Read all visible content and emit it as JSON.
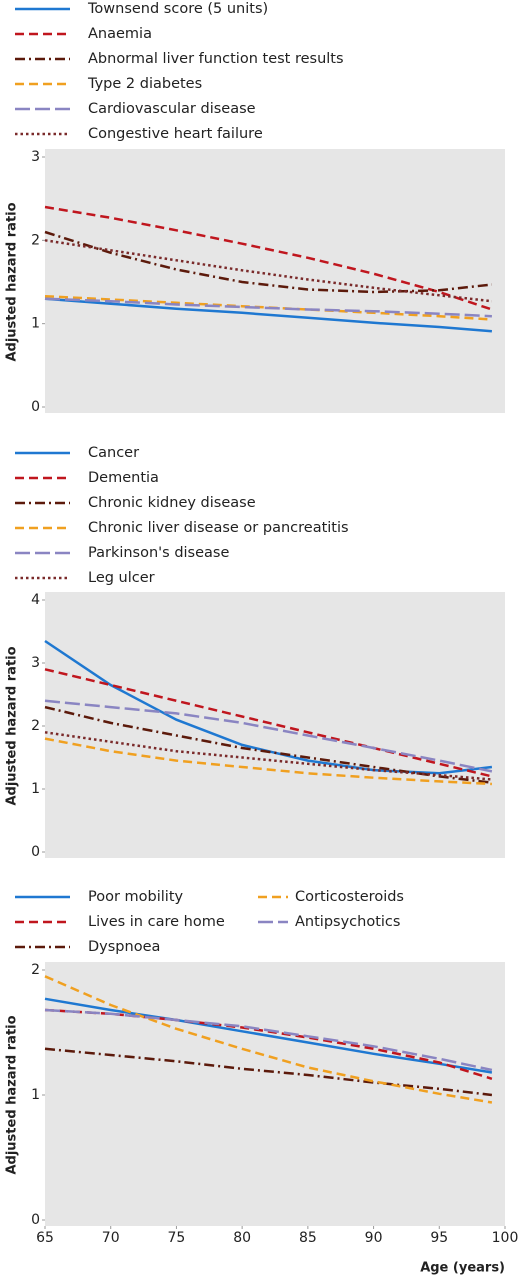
{
  "chart_data": [
    {
      "type": "line",
      "ylabel": "Adjusted hazard ratio",
      "xlim": [
        65,
        100
      ],
      "ylim": [
        0,
        3
      ],
      "yticks": [
        0,
        1,
        2,
        3
      ],
      "x": [
        65,
        70,
        75,
        80,
        85,
        90,
        95,
        99
      ],
      "series": [
        {
          "name": "Townsend score (5 units)",
          "color": "#1f78d1",
          "style": "solid",
          "values": [
            1.3,
            1.24,
            1.18,
            1.13,
            1.07,
            1.01,
            0.96,
            0.91
          ]
        },
        {
          "name": "Anaemia",
          "color": "#c0161e",
          "style": "dash",
          "values": [
            2.4,
            2.27,
            2.12,
            1.96,
            1.79,
            1.6,
            1.38,
            1.17
          ]
        },
        {
          "name": "Abnormal liver function test results",
          "color": "#5c1a0b",
          "style": "dashdot",
          "values": [
            2.1,
            1.85,
            1.65,
            1.5,
            1.41,
            1.38,
            1.4,
            1.47
          ]
        },
        {
          "name": "Type 2 diabetes",
          "color": "#f0a020",
          "style": "dash",
          "values": [
            1.33,
            1.29,
            1.25,
            1.21,
            1.17,
            1.13,
            1.09,
            1.05
          ]
        },
        {
          "name": "Cardiovascular disease",
          "color": "#8a85c2",
          "style": "longdash",
          "values": [
            1.3,
            1.27,
            1.23,
            1.2,
            1.17,
            1.15,
            1.12,
            1.09
          ]
        },
        {
          "name": "Congestive heart failure",
          "color": "#7a2a2a",
          "style": "dot",
          "values": [
            2.0,
            1.88,
            1.76,
            1.64,
            1.53,
            1.43,
            1.34,
            1.27
          ]
        }
      ]
    },
    {
      "type": "line",
      "ylabel": "Adjusted hazard ratio",
      "xlim": [
        65,
        100
      ],
      "ylim": [
        0,
        4
      ],
      "yticks": [
        0,
        1,
        2,
        3,
        4
      ],
      "x": [
        65,
        70,
        75,
        80,
        85,
        90,
        95,
        99
      ],
      "series": [
        {
          "name": "Cancer",
          "color": "#1f78d1",
          "style": "solid",
          "values": [
            3.35,
            2.65,
            2.1,
            1.7,
            1.45,
            1.3,
            1.25,
            1.35
          ]
        },
        {
          "name": "Dementia",
          "color": "#c0161e",
          "style": "dash",
          "values": [
            2.9,
            2.65,
            2.4,
            2.15,
            1.9,
            1.65,
            1.4,
            1.2
          ]
        },
        {
          "name": "Chronic kidney disease",
          "color": "#5c1a0b",
          "style": "dashdot",
          "values": [
            2.3,
            2.05,
            1.85,
            1.65,
            1.5,
            1.35,
            1.2,
            1.1
          ]
        },
        {
          "name": "Chronic liver disease or pancreatitis",
          "color": "#f0a020",
          "style": "dash",
          "values": [
            1.8,
            1.6,
            1.45,
            1.35,
            1.25,
            1.18,
            1.12,
            1.08
          ]
        },
        {
          "name": "Parkinson's disease",
          "color": "#8a85c2",
          "style": "longdash",
          "values": [
            2.4,
            2.3,
            2.2,
            2.05,
            1.85,
            1.65,
            1.45,
            1.28
          ]
        },
        {
          "name": "Leg ulcer",
          "color": "#7a2a2a",
          "style": "dot",
          "values": [
            1.9,
            1.75,
            1.6,
            1.5,
            1.4,
            1.3,
            1.22,
            1.15
          ]
        }
      ]
    },
    {
      "type": "line",
      "ylabel": "Adjusted hazard ratio",
      "xlabel": "Age (years)",
      "xlim": [
        65,
        100
      ],
      "xticks": [
        65,
        70,
        75,
        80,
        85,
        90,
        95,
        100
      ],
      "ylim": [
        0,
        2
      ],
      "yticks": [
        0,
        1,
        2
      ],
      "legend_columns": 2,
      "x": [
        65,
        70,
        75,
        80,
        85,
        90,
        95,
        99
      ],
      "series": [
        {
          "name": "Poor mobility",
          "color": "#1f78d1",
          "style": "solid",
          "values": [
            1.77,
            1.68,
            1.6,
            1.51,
            1.42,
            1.33,
            1.25,
            1.18
          ]
        },
        {
          "name": "Lives in care home",
          "color": "#c0161e",
          "style": "dash",
          "values": [
            1.68,
            1.65,
            1.6,
            1.54,
            1.46,
            1.37,
            1.26,
            1.13
          ]
        },
        {
          "name": "Dyspnoea",
          "color": "#5c1a0b",
          "style": "dashdot",
          "values": [
            1.37,
            1.32,
            1.27,
            1.21,
            1.16,
            1.1,
            1.05,
            1.0
          ]
        },
        {
          "name": "Corticosteroids",
          "color": "#f0a020",
          "style": "dash",
          "values": [
            1.95,
            1.72,
            1.53,
            1.37,
            1.22,
            1.11,
            1.01,
            0.94
          ]
        },
        {
          "name": "Antipsychotics",
          "color": "#8a85c2",
          "style": "longdash",
          "values": [
            1.68,
            1.65,
            1.6,
            1.55,
            1.47,
            1.39,
            1.29,
            1.2
          ]
        }
      ]
    }
  ]
}
